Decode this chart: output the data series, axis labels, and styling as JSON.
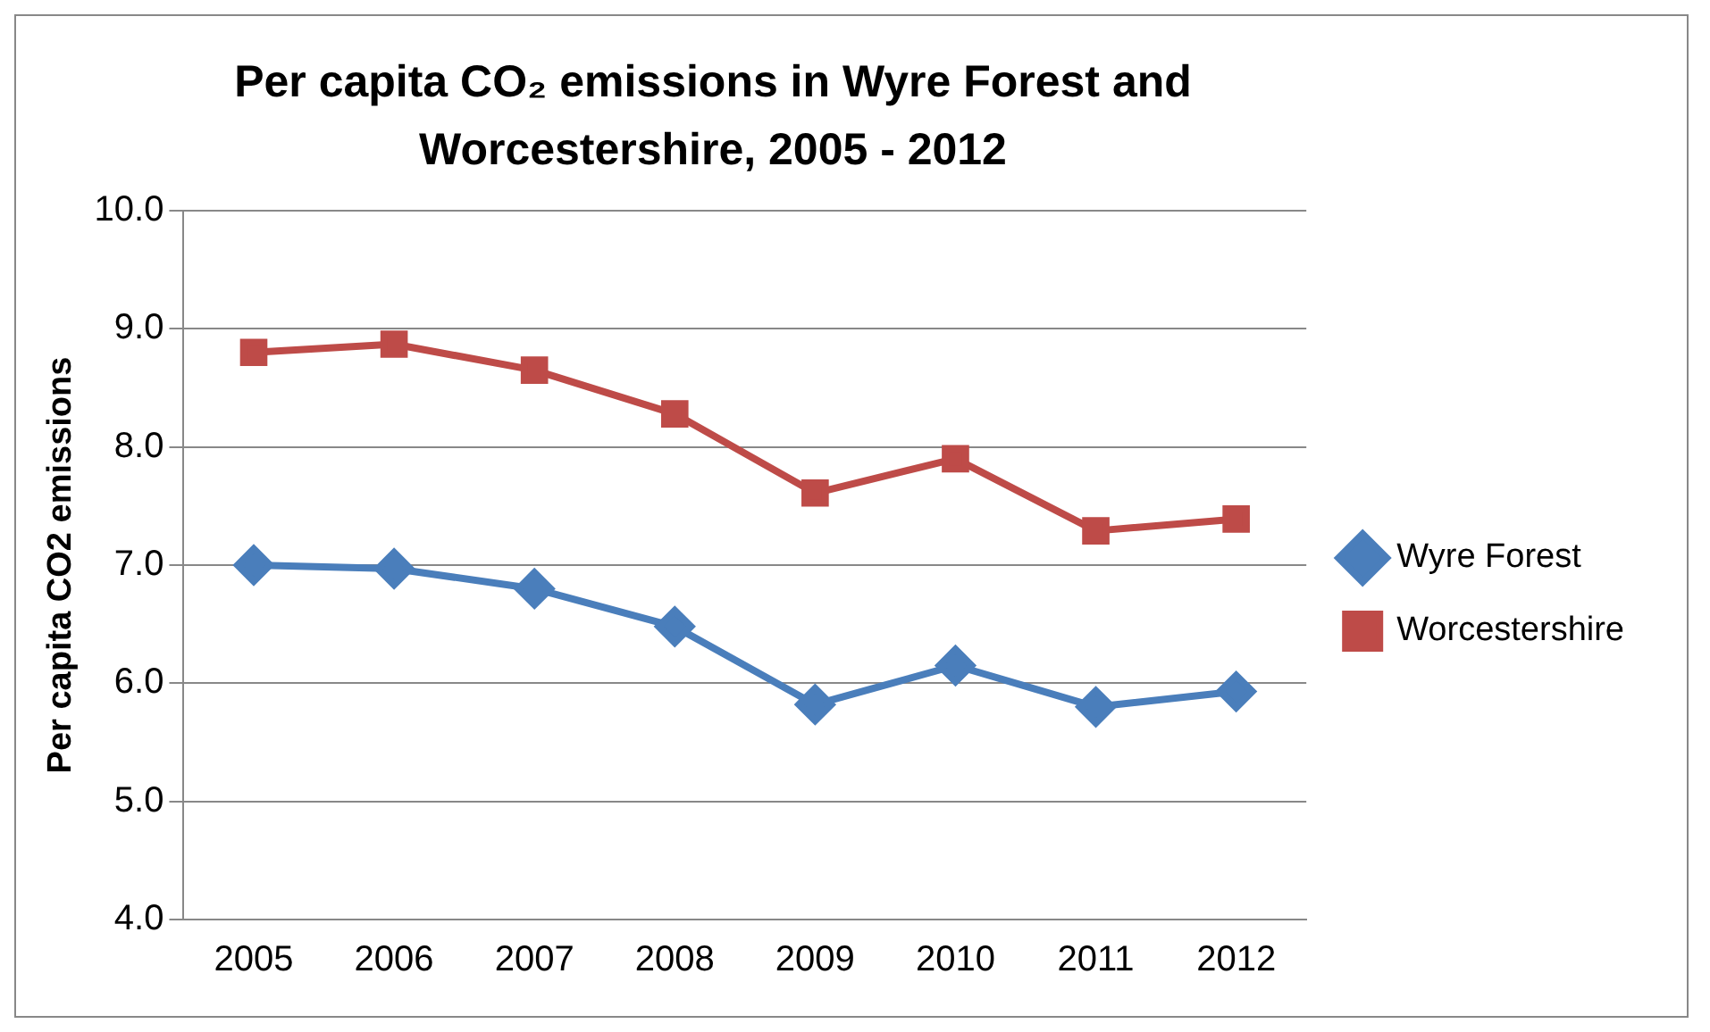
{
  "chart_data": {
    "type": "line",
    "title": "Per capita CO₂ emissions in Wyre Forest and Worcestershire, 2005 - 2012",
    "ylabel": "Per capita CO2 emissions",
    "categories": [
      "2005",
      "2006",
      "2007",
      "2008",
      "2009",
      "2010",
      "2011",
      "2012"
    ],
    "series": [
      {
        "name": "Wyre Forest",
        "color": "#4a7ebb",
        "marker": "diamond",
        "values": [
          7.0,
          6.97,
          6.8,
          6.48,
          5.82,
          6.15,
          5.8,
          5.93
        ]
      },
      {
        "name": "Worcestershire",
        "color": "#be4b48",
        "marker": "square",
        "values": [
          8.8,
          8.87,
          8.65,
          8.28,
          7.61,
          7.9,
          7.29,
          7.39
        ]
      }
    ],
    "ylim": [
      4,
      10
    ],
    "yticks": [
      {
        "value": 4,
        "label": "4.0"
      },
      {
        "value": 5,
        "label": "5.0"
      },
      {
        "value": 6,
        "label": "6.0"
      },
      {
        "value": 7,
        "label": "7.0"
      },
      {
        "value": 8,
        "label": "8.0"
      },
      {
        "value": 9,
        "label": "9.0"
      },
      {
        "value": 10,
        "label": "10.0"
      }
    ],
    "grid": "y",
    "legend": "right",
    "line_style": "solid"
  }
}
